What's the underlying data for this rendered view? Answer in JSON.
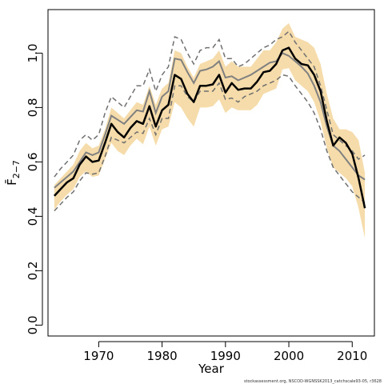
{
  "chart_data": {
    "type": "line",
    "xlabel": "Year",
    "ylabel": "F̄",
    "ylabel_subscript": "2−7",
    "xlim": [
      1962,
      2013.5
    ],
    "ylim": [
      -0.04,
      1.16
    ],
    "x_ticks": [
      1970,
      1980,
      1990,
      2000,
      2010
    ],
    "y_ticks": [
      0.0,
      0.2,
      0.4,
      0.6,
      0.8,
      1.0
    ],
    "y_tick_labels": [
      "0.0",
      "0.2",
      "0.4",
      "0.6",
      "0.8",
      "1.0"
    ],
    "footer": "stockassessment.org, NSCOD-WGNSSK2013_catchscale93-05, r3628",
    "colors": {
      "band": "#f5dcaa",
      "estimate": "#000000",
      "series_grey": "#808080",
      "dashed": "#707070"
    },
    "years": [
      1963,
      1964,
      1965,
      1966,
      1967,
      1968,
      1969,
      1970,
      1971,
      1972,
      1973,
      1974,
      1975,
      1976,
      1977,
      1978,
      1979,
      1980,
      1981,
      1982,
      1983,
      1984,
      1985,
      1986,
      1987,
      1988,
      1989,
      1990,
      1991,
      1992,
      1993,
      1994,
      1995,
      1996,
      1997,
      1998,
      1999,
      2000,
      2001,
      2002,
      2003,
      2004,
      2005,
      2006,
      2007,
      2008,
      2009,
      2010,
      2011,
      2012
    ],
    "estimate": [
      0.475,
      0.5,
      0.525,
      0.54,
      0.59,
      0.62,
      0.6,
      0.605,
      0.67,
      0.74,
      0.71,
      0.69,
      0.725,
      0.75,
      0.74,
      0.805,
      0.73,
      0.79,
      0.81,
      0.92,
      0.905,
      0.85,
      0.82,
      0.88,
      0.88,
      0.885,
      0.92,
      0.855,
      0.89,
      0.865,
      0.87,
      0.87,
      0.895,
      0.93,
      0.935,
      0.96,
      1.01,
      1.02,
      0.98,
      0.96,
      0.955,
      0.92,
      0.86,
      0.75,
      0.66,
      0.69,
      0.67,
      0.63,
      0.54,
      0.43
    ],
    "band_upper": [
      0.515,
      0.54,
      0.565,
      0.59,
      0.64,
      0.67,
      0.65,
      0.66,
      0.72,
      0.8,
      0.78,
      0.76,
      0.79,
      0.82,
      0.81,
      0.88,
      0.81,
      0.87,
      0.89,
      1.01,
      1.0,
      0.95,
      0.91,
      0.96,
      0.97,
      0.98,
      1.01,
      0.95,
      0.97,
      0.95,
      0.95,
      0.95,
      0.98,
      1.01,
      1.01,
      1.04,
      1.09,
      1.11,
      1.06,
      1.05,
      1.04,
      1.02,
      0.96,
      0.85,
      0.76,
      0.72,
      0.72,
      0.71,
      0.68,
      0.56
    ],
    "band_lower": [
      0.425,
      0.455,
      0.48,
      0.5,
      0.545,
      0.565,
      0.545,
      0.55,
      0.61,
      0.67,
      0.64,
      0.625,
      0.66,
      0.685,
      0.665,
      0.73,
      0.66,
      0.72,
      0.73,
      0.82,
      0.8,
      0.76,
      0.73,
      0.8,
      0.8,
      0.805,
      0.83,
      0.78,
      0.8,
      0.79,
      0.79,
      0.79,
      0.81,
      0.85,
      0.86,
      0.87,
      0.94,
      0.945,
      0.9,
      0.88,
      0.86,
      0.82,
      0.75,
      0.65,
      0.58,
      0.56,
      0.54,
      0.51,
      0.43,
      0.32
    ],
    "grey_line": [
      0.505,
      0.525,
      0.545,
      0.565,
      0.6,
      0.635,
      0.625,
      0.635,
      0.7,
      0.77,
      0.755,
      0.74,
      0.765,
      0.79,
      0.785,
      0.86,
      0.78,
      0.84,
      0.86,
      0.98,
      0.975,
      0.93,
      0.89,
      0.935,
      0.94,
      0.95,
      0.97,
      0.91,
      0.915,
      0.9,
      0.91,
      0.92,
      0.935,
      0.95,
      0.965,
      0.97,
      1.0,
      0.99,
      0.97,
      0.95,
      0.925,
      0.88,
      0.82,
      0.73,
      0.66,
      0.64,
      0.61,
      0.58,
      0.55,
      0.535
    ],
    "dashed_upper": [
      0.545,
      0.575,
      0.6,
      0.625,
      0.68,
      0.7,
      0.68,
      0.7,
      0.78,
      0.84,
      0.82,
      0.8,
      0.84,
      0.88,
      0.88,
      0.94,
      0.86,
      0.92,
      0.95,
      1.06,
      1.05,
      1.0,
      0.96,
      1.01,
      1.02,
      1.02,
      1.05,
      0.98,
      0.98,
      0.95,
      0.96,
      0.98,
      1.0,
      1.02,
      1.03,
      1.05,
      1.06,
      1.08,
      1.04,
      1.01,
      0.98,
      0.95,
      0.88,
      0.79,
      0.7,
      0.68,
      0.66,
      0.64,
      0.61,
      0.625
    ],
    "dashed_lower": [
      0.42,
      0.445,
      0.47,
      0.49,
      0.53,
      0.56,
      0.555,
      0.56,
      0.62,
      0.69,
      0.68,
      0.67,
      0.69,
      0.71,
      0.705,
      0.76,
      0.7,
      0.76,
      0.76,
      0.88,
      0.88,
      0.84,
      0.82,
      0.86,
      0.86,
      0.86,
      0.89,
      0.83,
      0.835,
      0.82,
      0.84,
      0.85,
      0.86,
      0.88,
      0.89,
      0.9,
      0.92,
      0.915,
      0.88,
      0.85,
      0.82,
      0.78,
      0.72,
      0.64,
      0.58,
      0.55,
      0.52,
      0.49,
      0.47,
      0.45
    ]
  }
}
